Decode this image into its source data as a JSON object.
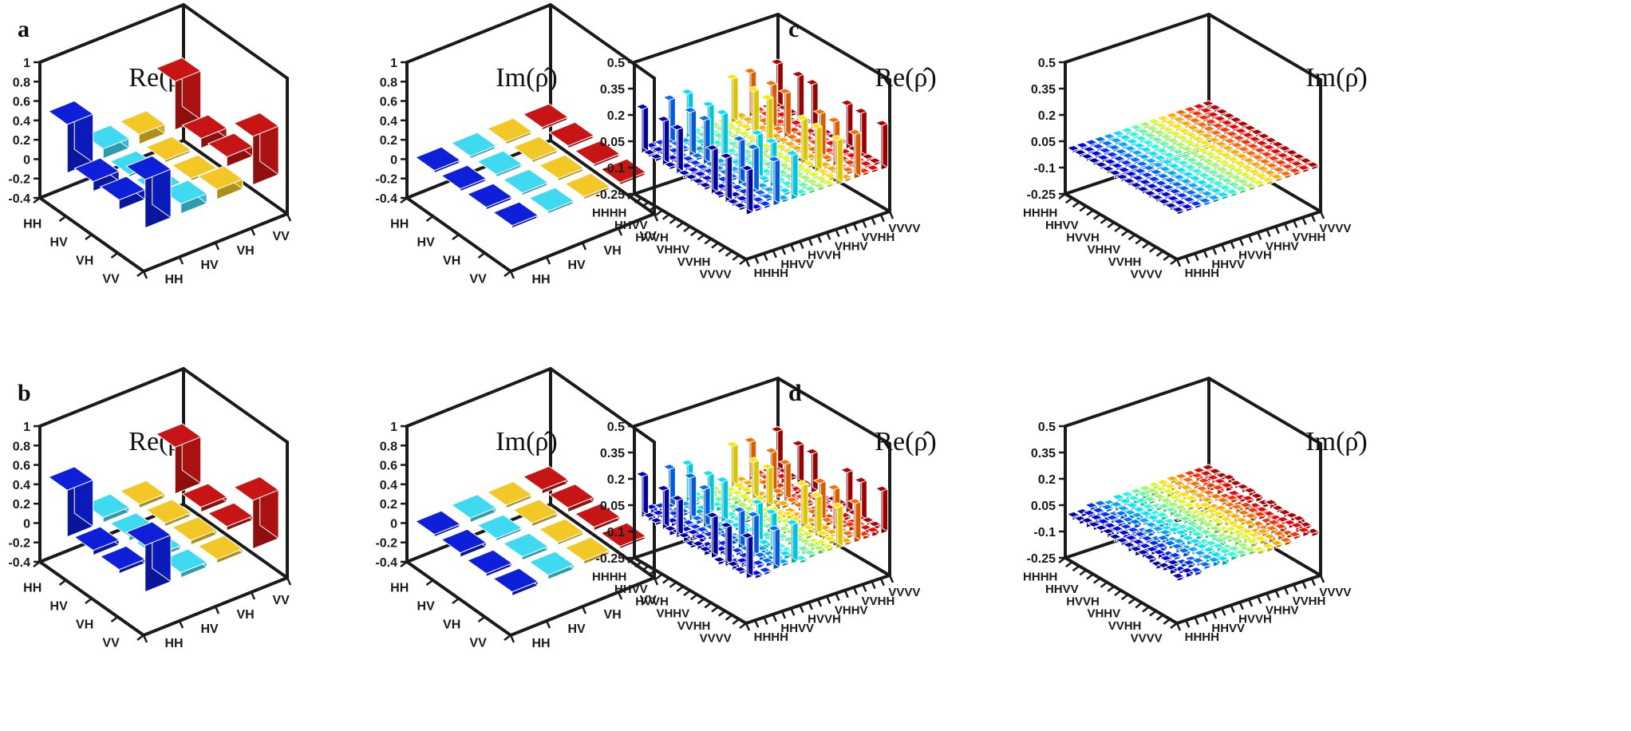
{
  "chart_data": [
    {
      "panel": "a",
      "component": "real",
      "type": "bar3d",
      "title": "Re(ρ̂)",
      "zticks": [
        "1",
        "0.8",
        "0.6",
        "0.4",
        "0.2",
        "0",
        "-0.2",
        "-0.4"
      ],
      "zlim": [
        -0.4,
        1
      ],
      "row_labels": [
        "HH",
        "HV",
        "VH",
        "VV"
      ],
      "col_labels": [
        "HH",
        "HV",
        "VH",
        "VV"
      ],
      "values": [
        [
          0.5,
          0.1,
          0.1,
          0.5
        ],
        [
          0.1,
          0.0,
          0.0,
          0.1
        ],
        [
          0.1,
          0.0,
          0.0,
          0.1
        ],
        [
          0.5,
          0.1,
          0.1,
          0.5
        ]
      ]
    },
    {
      "panel": "a",
      "component": "imag",
      "type": "bar3d",
      "title": "Im(ρ̂)",
      "zticks": [
        "1",
        "0.8",
        "0.6",
        "0.4",
        "0.2",
        "0",
        "-0.2",
        "-0.4"
      ],
      "zlim": [
        -0.4,
        1
      ],
      "row_labels": [
        "HH",
        "HV",
        "VH",
        "VV"
      ],
      "col_labels": [
        "HH",
        "HV",
        "VH",
        "VV"
      ],
      "values": [
        [
          0.0,
          0.0,
          0.0,
          0.0
        ],
        [
          0.0,
          0.0,
          0.0,
          0.0
        ],
        [
          0.0,
          0.0,
          0.0,
          0.0
        ],
        [
          0.0,
          0.0,
          0.0,
          0.0
        ]
      ]
    },
    {
      "panel": "b",
      "component": "real",
      "type": "bar3d",
      "title": "Re(ρ̂)",
      "zticks": [
        "1",
        "0.8",
        "0.6",
        "0.4",
        "0.2",
        "0",
        "-0.2",
        "-0.4"
      ],
      "zlim": [
        -0.4,
        1
      ],
      "row_labels": [
        "HH",
        "HV",
        "VH",
        "VV"
      ],
      "col_labels": [
        "HH",
        "HV",
        "VH",
        "VV"
      ],
      "values": [
        [
          0.48,
          0.05,
          0.04,
          0.48
        ],
        [
          0.05,
          0.02,
          0.01,
          0.05
        ],
        [
          0.04,
          0.01,
          0.02,
          0.04
        ],
        [
          0.48,
          0.05,
          0.04,
          0.5
        ]
      ]
    },
    {
      "panel": "b",
      "component": "imag",
      "type": "bar3d",
      "title": "Im(ρ̂)",
      "zticks": [
        "1",
        "0.8",
        "0.6",
        "0.4",
        "0.2",
        "0",
        "-0.2",
        "-0.4"
      ],
      "zlim": [
        -0.4,
        1
      ],
      "row_labels": [
        "HH",
        "HV",
        "VH",
        "VV"
      ],
      "col_labels": [
        "HH",
        "HV",
        "VH",
        "VV"
      ],
      "values": [
        [
          0.0,
          0.02,
          0.03,
          0.04
        ],
        [
          -0.02,
          0.0,
          0.01,
          0.02
        ],
        [
          -0.03,
          -0.01,
          0.0,
          0.01
        ],
        [
          -0.04,
          -0.02,
          -0.01,
          0.0
        ]
      ]
    },
    {
      "panel": "c",
      "component": "real",
      "type": "bar3d",
      "title": "Re(ρ̂)",
      "zticks": [
        "0.5",
        "0.35",
        "0.2",
        "0.05",
        "-0.1",
        "-0.25"
      ],
      "zlim": [
        -0.25,
        0.5
      ],
      "row_labels": [
        "HHHH",
        "HHVV",
        "HVVH",
        "VHHV",
        "VVHH",
        "VVVV"
      ],
      "col_labels": [
        "HHHH",
        "HHVV",
        "HVVH",
        "VHHV",
        "VVHH",
        "VVVV"
      ],
      "row_label_idx": [
        0,
        3,
        6,
        9,
        12,
        15
      ],
      "size": 16,
      "nonzero": [
        [
          0,
          0,
          0.25
        ],
        [
          0,
          3,
          0.25
        ],
        [
          0,
          5,
          0.25
        ],
        [
          0,
          10,
          0.25
        ],
        [
          0,
          12,
          0.25
        ],
        [
          0,
          15,
          0.25
        ],
        [
          3,
          0,
          0.25
        ],
        [
          3,
          3,
          0.25
        ],
        [
          3,
          5,
          0.25
        ],
        [
          3,
          10,
          0.25
        ],
        [
          3,
          12,
          0.25
        ],
        [
          3,
          15,
          0.25
        ],
        [
          5,
          0,
          0.25
        ],
        [
          5,
          3,
          0.25
        ],
        [
          5,
          5,
          0.25
        ],
        [
          5,
          10,
          0.25
        ],
        [
          5,
          12,
          0.25
        ],
        [
          5,
          15,
          0.25
        ],
        [
          10,
          0,
          0.25
        ],
        [
          10,
          3,
          0.25
        ],
        [
          10,
          5,
          0.25
        ],
        [
          10,
          10,
          0.25
        ],
        [
          10,
          12,
          0.25
        ],
        [
          10,
          15,
          0.25
        ],
        [
          12,
          0,
          0.25
        ],
        [
          12,
          3,
          0.25
        ],
        [
          12,
          5,
          0.25
        ],
        [
          12,
          10,
          0.25
        ],
        [
          12,
          12,
          0.25
        ],
        [
          12,
          15,
          0.25
        ],
        [
          15,
          0,
          0.25
        ],
        [
          15,
          3,
          0.25
        ],
        [
          15,
          5,
          0.25
        ],
        [
          15,
          10,
          0.25
        ],
        [
          15,
          12,
          0.25
        ],
        [
          15,
          15,
          0.25
        ]
      ]
    },
    {
      "panel": "c",
      "component": "imag",
      "type": "bar3d",
      "title": "Im(ρ̂)",
      "zticks": [
        "0.5",
        "0.35",
        "0.2",
        "0.05",
        "-0.1",
        "-0.25"
      ],
      "zlim": [
        -0.25,
        0.5
      ],
      "row_labels": [
        "HHHH",
        "HHVV",
        "HVVH",
        "VHHV",
        "VVHH",
        "VVVV"
      ],
      "col_labels": [
        "HHHH",
        "HHVV",
        "HVVH",
        "VHHV",
        "VVHH",
        "VVVV"
      ],
      "row_label_idx": [
        0,
        3,
        6,
        9,
        12,
        15
      ],
      "size": 16,
      "nonzero": []
    },
    {
      "panel": "d",
      "component": "real",
      "type": "bar3d",
      "title": "Re(ρ̂)",
      "zticks": [
        "0.5",
        "0.35",
        "0.2",
        "0.05",
        "-0.1",
        "-0.25"
      ],
      "zlim": [
        -0.25,
        0.5
      ],
      "row_labels": [
        "HHHH",
        "HHVV",
        "HVVH",
        "VHHV",
        "VVHH",
        "VVVV"
      ],
      "col_labels": [
        "HHHH",
        "HHVV",
        "HVVH",
        "VHHV",
        "VVHH",
        "VVVV"
      ],
      "row_label_idx": [
        0,
        3,
        6,
        9,
        12,
        15
      ],
      "size": 16,
      "nonzero": [
        [
          0,
          0,
          0.23
        ],
        [
          0,
          3,
          0.22
        ],
        [
          0,
          5,
          0.21
        ],
        [
          0,
          10,
          0.23
        ],
        [
          0,
          12,
          0.22
        ],
        [
          0,
          15,
          0.23
        ],
        [
          3,
          0,
          0.22
        ],
        [
          3,
          3,
          0.24
        ],
        [
          3,
          5,
          0.22
        ],
        [
          3,
          10,
          0.21
        ],
        [
          3,
          12,
          0.23
        ],
        [
          3,
          15,
          0.22
        ],
        [
          5,
          0,
          0.21
        ],
        [
          5,
          3,
          0.22
        ],
        [
          5,
          5,
          0.23
        ],
        [
          5,
          10,
          0.22
        ],
        [
          5,
          12,
          0.21
        ],
        [
          5,
          15,
          0.22
        ],
        [
          10,
          0,
          0.23
        ],
        [
          10,
          3,
          0.21
        ],
        [
          10,
          5,
          0.22
        ],
        [
          10,
          10,
          0.24
        ],
        [
          10,
          12,
          0.22
        ],
        [
          10,
          15,
          0.23
        ],
        [
          12,
          0,
          0.22
        ],
        [
          12,
          3,
          0.23
        ],
        [
          12,
          5,
          0.21
        ],
        [
          12,
          10,
          0.22
        ],
        [
          12,
          12,
          0.23
        ],
        [
          12,
          15,
          0.22
        ],
        [
          15,
          0,
          0.23
        ],
        [
          15,
          3,
          0.22
        ],
        [
          15,
          5,
          0.22
        ],
        [
          15,
          10,
          0.23
        ],
        [
          15,
          12,
          0.22
        ],
        [
          15,
          15,
          0.24
        ]
      ],
      "noise": 0.02
    },
    {
      "panel": "d",
      "component": "imag",
      "type": "bar3d",
      "title": "Im(ρ̂)",
      "zticks": [
        "0.5",
        "0.35",
        "0.2",
        "0.05",
        "-0.1",
        "-0.25"
      ],
      "zlim": [
        -0.25,
        0.5
      ],
      "row_labels": [
        "HHHH",
        "HHVV",
        "HVVH",
        "VHHV",
        "VVHH",
        "VVVV"
      ],
      "col_labels": [
        "HHHH",
        "HHVV",
        "HVVH",
        "VHHV",
        "VVHH",
        "VVVV"
      ],
      "row_label_idx": [
        0,
        3,
        6,
        9,
        12,
        15
      ],
      "size": 16,
      "nonzero": [],
      "noise": 0.02
    }
  ],
  "panel_letters": [
    "a",
    "b",
    "c",
    "d"
  ]
}
